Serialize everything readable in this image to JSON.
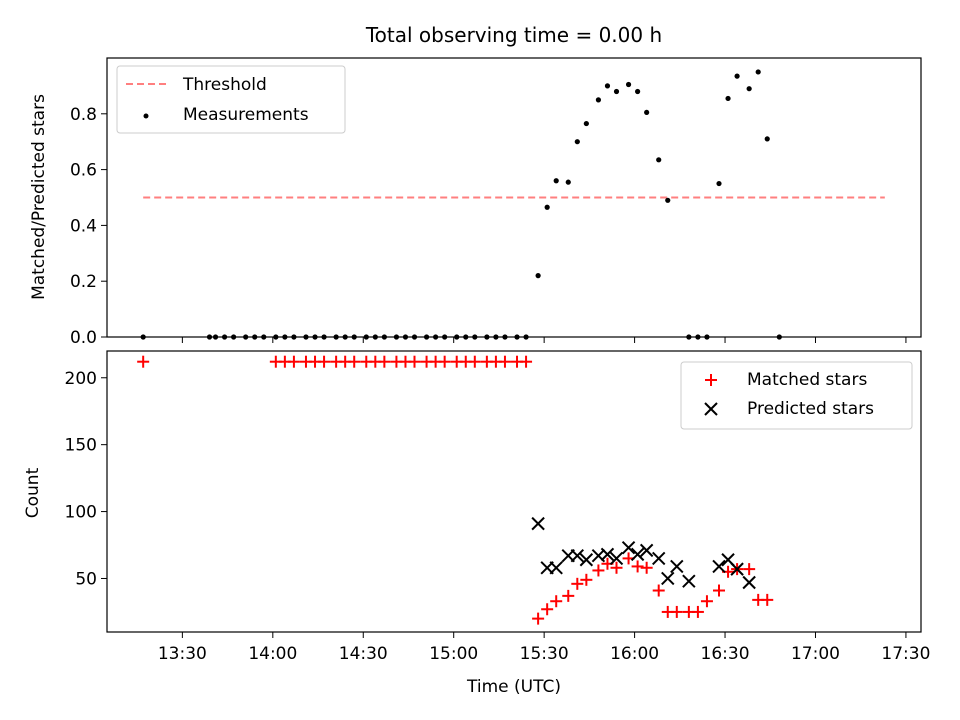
{
  "title": "Total observing time = 0.00 h",
  "chart_data": [
    {
      "type": "scatter",
      "ylabel": "Matched/Predicted stars",
      "ylim": [
        0,
        1.0
      ],
      "yticks": [
        0.0,
        0.2,
        0.4,
        0.6,
        0.8
      ],
      "ytick_labels": [
        "0.0",
        "0.2",
        "0.4",
        "0.6",
        "0.8"
      ],
      "xlim": [
        "13:05",
        "17:35"
      ],
      "legend_placement": "upper-left",
      "threshold": {
        "name": "Threshold",
        "value": 0.5,
        "x_start": "13:17",
        "x_end": "17:23",
        "color": "#ff7f7f",
        "style": "dashed"
      },
      "series": [
        {
          "name": "Measurements",
          "color": "#000000",
          "marker": "dot",
          "x": [
            "13:17",
            "13:39",
            "13:41",
            "13:44",
            "13:47",
            "13:51",
            "13:54",
            "13:57",
            "14:01",
            "14:04",
            "14:07",
            "14:11",
            "14:14",
            "14:17",
            "14:21",
            "14:24",
            "14:27",
            "14:31",
            "14:34",
            "14:37",
            "14:41",
            "14:44",
            "14:47",
            "14:51",
            "14:54",
            "14:57",
            "15:01",
            "15:04",
            "15:07",
            "15:11",
            "15:14",
            "15:17",
            "15:21",
            "15:24",
            "15:28",
            "15:31",
            "15:34",
            "15:38",
            "15:41",
            "15:44",
            "15:48",
            "15:51",
            "15:54",
            "15:58",
            "16:01",
            "16:04",
            "16:08",
            "16:11",
            "16:14",
            "16:18",
            "16:21",
            "16:24",
            "16:28",
            "16:31",
            "16:34",
            "16:38",
            "16:41",
            "16:44",
            "16:48",
            "16:51",
            "16:54",
            "16:58",
            "17:01",
            "17:04",
            "17:08",
            "17:11",
            "17:14",
            "17:18",
            "17:21"
          ],
          "y": [
            0,
            0,
            0,
            0,
            0,
            0,
            0,
            0,
            0,
            0,
            0,
            0,
            0,
            0,
            0,
            0,
            0,
            0,
            0,
            0,
            0,
            0,
            0,
            0,
            0,
            0,
            0,
            0,
            0,
            0,
            0,
            0,
            0,
            0,
            0.22,
            0.465,
            0.56,
            0.555,
            0.7,
            0.765,
            0.85,
            0.9,
            0.88,
            0.905,
            0.88,
            0.805,
            0.635,
            0.49,
            null,
            0,
            0,
            0,
            0.55,
            0.855,
            0.935,
            0.89,
            0.95,
            0.71,
            0,
            null,
            null,
            null,
            null,
            null,
            null,
            null,
            null,
            null,
            null
          ]
        }
      ]
    },
    {
      "type": "scatter",
      "xlabel": "Time (UTC)",
      "ylabel": "Count",
      "ylim": [
        10,
        220
      ],
      "yticks": [
        50,
        100,
        150,
        200
      ],
      "ytick_labels": [
        "50",
        "100",
        "150",
        "200"
      ],
      "xlim": [
        "13:05",
        "17:35"
      ],
      "xticks": [
        "13:30",
        "14:00",
        "14:30",
        "15:00",
        "15:30",
        "16:00",
        "16:30",
        "17:00",
        "17:30"
      ],
      "legend_placement": "upper-right",
      "series": [
        {
          "name": "Matched stars",
          "color": "#ff0000",
          "marker": "plus",
          "x": [
            "13:17",
            "13:39",
            "13:41",
            "13:44",
            "13:47",
            "13:51",
            "13:54",
            "13:57",
            "14:01",
            "14:04",
            "14:07",
            "14:11",
            "14:14",
            "14:17",
            "14:21",
            "14:24",
            "14:27",
            "14:31",
            "14:34",
            "14:37",
            "14:41",
            "14:44",
            "14:47",
            "14:51",
            "14:54",
            "14:57",
            "15:01",
            "15:04",
            "15:07",
            "15:11",
            "15:14",
            "15:17",
            "15:21",
            "15:24",
            "15:28",
            "15:31",
            "15:34",
            "15:38",
            "15:41",
            "15:44",
            "15:48",
            "15:51",
            "15:54",
            "15:58",
            "16:01",
            "16:04",
            "16:08",
            "16:11",
            "16:14",
            "16:18",
            "16:21",
            "16:24",
            "16:28",
            "16:31",
            "16:34",
            "16:38",
            "16:41",
            "16:44",
            "16:48",
            "16:51",
            "16:54",
            "16:58",
            "17:01",
            "17:04",
            "17:08",
            "17:11",
            "17:14",
            "17:18",
            "17:21"
          ],
          "y": [
            212,
            null,
            null,
            null,
            null,
            null,
            null,
            null,
            212,
            212,
            212,
            212,
            212,
            212,
            212,
            212,
            212,
            212,
            212,
            212,
            212,
            212,
            212,
            212,
            212,
            212,
            212,
            212,
            212,
            212,
            212,
            212,
            212,
            212,
            20,
            27,
            33,
            37,
            46,
            49,
            56,
            61,
            58,
            65,
            59,
            58,
            41,
            25,
            25,
            25,
            25,
            33,
            41,
            55,
            57,
            57,
            34,
            34,
            null,
            null,
            null,
            null,
            null,
            null,
            null,
            null,
            null,
            null,
            null
          ]
        },
        {
          "name": "Predicted stars",
          "color": "#000000",
          "marker": "x",
          "x": [
            "15:28",
            "15:31",
            "15:34",
            "15:38",
            "15:41",
            "15:44",
            "15:48",
            "15:51",
            "15:54",
            "15:58",
            "16:01",
            "16:04",
            "16:08",
            "16:11",
            "16:14",
            "16:18",
            "16:28",
            "16:31",
            "16:34",
            "16:38",
            "16:41",
            "16:44",
            "16:48"
          ],
          "y": [
            91,
            58,
            58,
            67,
            67,
            64,
            67,
            68,
            65,
            73,
            68,
            71,
            65,
            50,
            59,
            48,
            59,
            64,
            57,
            47,
            null,
            null,
            null
          ]
        }
      ]
    }
  ]
}
